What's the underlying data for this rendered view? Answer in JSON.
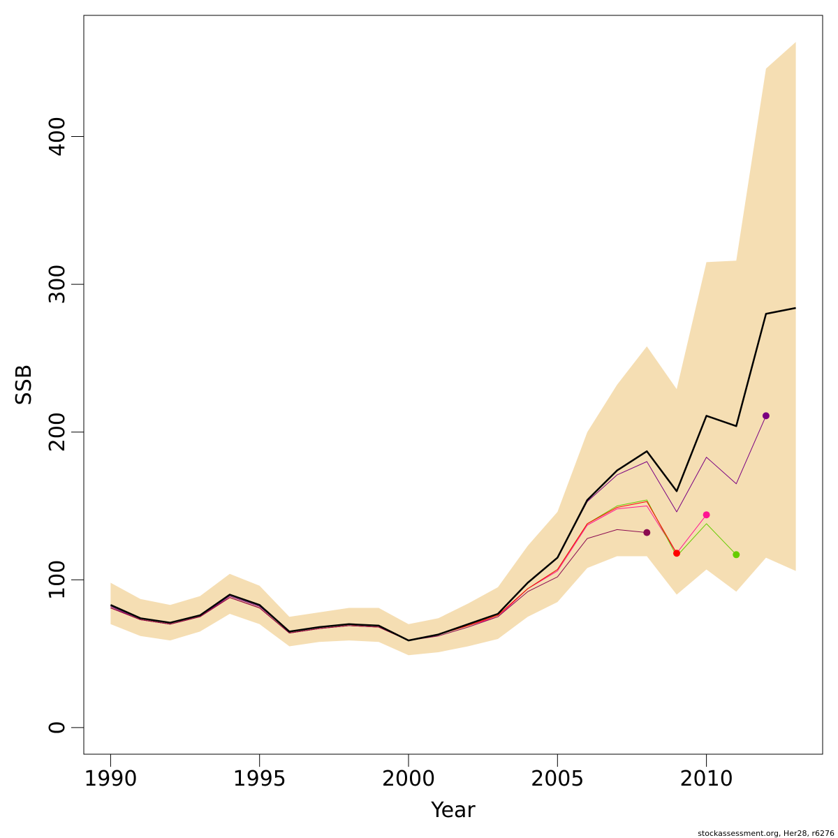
{
  "chart_data": {
    "type": "line",
    "title": "",
    "xlabel": "Year",
    "ylabel": "SSB",
    "xlim": [
      1989.1,
      2013.9
    ],
    "ylim": [
      -18,
      482
    ],
    "x_ticks": [
      1990,
      1995,
      2000,
      2005,
      2010
    ],
    "y_ticks": [
      0,
      100,
      200,
      300,
      400
    ],
    "grid": false,
    "legend": "none",
    "credit": "stockassessment.org, Her28, r6276",
    "confidence_band": {
      "color": "#F5DEB3",
      "x": [
        1990,
        1991,
        1992,
        1993,
        1994,
        1995,
        1996,
        1997,
        1998,
        1999,
        2000,
        2001,
        2002,
        2003,
        2004,
        2005,
        2006,
        2007,
        2008,
        2009,
        2010,
        2011,
        2012,
        2013
      ],
      "lower": [
        70,
        62,
        59,
        65,
        77,
        70,
        55,
        58,
        59,
        58,
        49,
        51,
        55,
        60,
        75,
        85,
        108,
        116,
        116,
        90,
        107,
        92,
        115,
        106
      ],
      "upper": [
        98,
        87,
        83,
        89,
        104,
        96,
        75,
        78,
        81,
        81,
        70,
        74,
        84,
        95,
        123,
        146,
        200,
        232,
        258,
        229,
        315,
        316,
        446,
        464
      ]
    },
    "series": [
      {
        "color": "#000000",
        "width": 2.5,
        "x": [
          1990,
          1991,
          1992,
          1993,
          1994,
          1995,
          1996,
          1997,
          1998,
          1999,
          2000,
          2001,
          2002,
          2003,
          2004,
          2005,
          2006,
          2007,
          2008,
          2009,
          2010,
          2011,
          2012,
          2013
        ],
        "values": [
          83,
          74,
          71,
          76,
          90,
          83,
          65,
          68,
          70,
          69,
          59,
          63,
          70,
          77,
          98,
          115,
          154,
          174,
          187,
          160,
          211,
          204,
          280,
          284
        ],
        "end_point": false
      },
      {
        "color": "#7A0080",
        "width": 1,
        "x": [
          1990,
          1991,
          1992,
          1993,
          1994,
          1995,
          1996,
          1997,
          1998,
          1999,
          2000,
          2001,
          2002,
          2003,
          2004,
          2005,
          2006,
          2007,
          2008,
          2009,
          2010,
          2011,
          2012
        ],
        "values": [
          82,
          73,
          70,
          75,
          89,
          82,
          65,
          68,
          70,
          69,
          59,
          63,
          70,
          77,
          98,
          115,
          153,
          171,
          180,
          146,
          183,
          165,
          211
        ],
        "end_point": true
      },
      {
        "color": "#FF1493",
        "width": 1,
        "x": [
          1990,
          1991,
          1992,
          1993,
          1994,
          1995,
          1996,
          1997,
          1998,
          1999,
          2000,
          2001,
          2002,
          2003,
          2004,
          2005,
          2006,
          2007,
          2008,
          2009,
          2010
        ],
        "values": [
          81,
          73,
          70,
          75,
          88,
          81,
          64,
          67,
          69,
          68,
          59,
          63,
          69,
          75,
          94,
          106,
          137,
          148,
          150,
          118,
          144
        ],
        "end_point": true
      },
      {
        "color": "#66CC00",
        "width": 1,
        "x": [
          1990,
          1991,
          1992,
          1993,
          1994,
          1995,
          1996,
          1997,
          1998,
          1999,
          2000,
          2001,
          2002,
          2003,
          2004,
          2005,
          2006,
          2007,
          2008,
          2009,
          2010,
          2011
        ],
        "values": [
          81,
          73,
          70,
          75,
          88,
          81,
          64,
          67,
          69,
          68,
          59,
          63,
          69,
          76,
          94,
          107,
          138,
          150,
          154,
          116,
          138,
          117
        ],
        "end_point": true
      },
      {
        "color": "#FF0000",
        "width": 1,
        "x": [
          1990,
          1991,
          1992,
          1993,
          1994,
          1995,
          1996,
          1997,
          1998,
          1999,
          2000,
          2001,
          2002,
          2003,
          2004,
          2005,
          2006,
          2007,
          2008,
          2009
        ],
        "values": [
          81,
          73,
          70,
          75,
          88,
          81,
          64,
          67,
          69,
          68,
          59,
          63,
          69,
          76,
          94,
          107,
          138,
          149,
          153,
          118
        ],
        "end_point": true
      },
      {
        "color": "#8B0A50",
        "width": 1,
        "x": [
          1990,
          1991,
          1992,
          1993,
          1994,
          1995,
          1996,
          1997,
          1998,
          1999,
          2000,
          2001,
          2002,
          2003,
          2004,
          2005,
          2006,
          2007,
          2008
        ],
        "values": [
          81,
          73,
          70,
          75,
          88,
          81,
          64,
          67,
          69,
          68,
          59,
          62,
          68,
          75,
          92,
          102,
          128,
          134,
          132
        ],
        "end_point": true
      }
    ]
  }
}
